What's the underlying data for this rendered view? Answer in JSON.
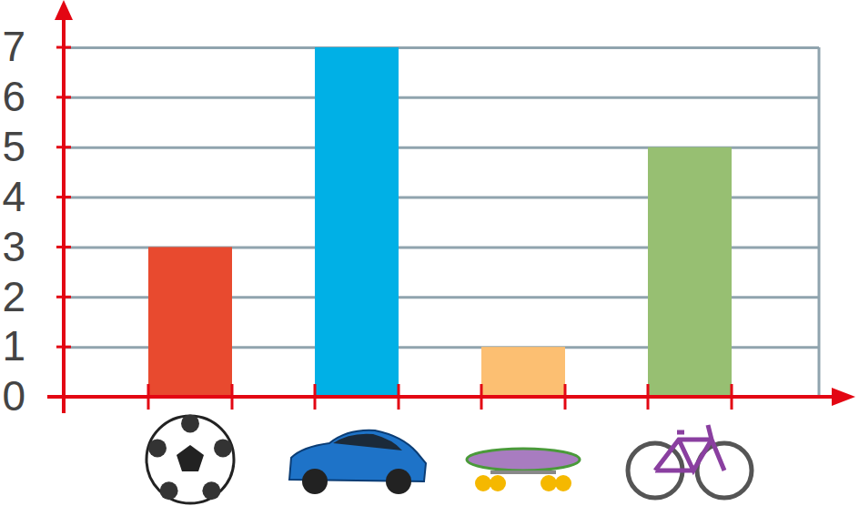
{
  "chart_data": {
    "type": "bar",
    "categories": [
      null,
      null,
      null,
      null
    ],
    "values": [
      3,
      7,
      1,
      5
    ],
    "colors": [
      "#e84a2f",
      "#00b0e6",
      "#fcbf72",
      "#97bf72"
    ],
    "ylim": [
      0,
      7
    ],
    "yticks": [
      0,
      1,
      2,
      3,
      4,
      5,
      6,
      7
    ],
    "grid": true,
    "tick_labels": "y"
  }
}
